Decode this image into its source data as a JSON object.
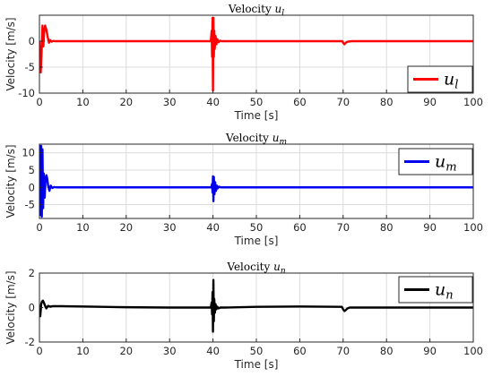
{
  "chart_data": [
    {
      "type": "line",
      "title": "Velocity",
      "title_sub": "l",
      "xlabel": "Time [s]",
      "ylabel": "Velocity [m/s]",
      "xlim": [
        0,
        100
      ],
      "ylim": [
        -10,
        5
      ],
      "xticks": [
        0,
        10,
        20,
        30,
        40,
        50,
        60,
        70,
        80,
        90,
        100
      ],
      "yticks": [
        -10,
        -5,
        0
      ],
      "grid": true,
      "legend_position": "bottom-right",
      "series": [
        {
          "name": "u_l",
          "legend_base": "u",
          "legend_sub": "l",
          "color": "#ff0000",
          "x": [
            0,
            0.3,
            0.5,
            0.7,
            0.9,
            1.1,
            1.3,
            1.6,
            1.9,
            2.2,
            2.5,
            2.8,
            3.2,
            3.6,
            5,
            10,
            20,
            30,
            39.5,
            39.7,
            39.8,
            39.9,
            40.0,
            40.1,
            40.2,
            40.3,
            40.4,
            40.6,
            40.8,
            41.0,
            41.3,
            41.6,
            42,
            43,
            50,
            60,
            69.8,
            70.0,
            70.3,
            70.6,
            71,
            72,
            80,
            90,
            100
          ],
          "y": [
            0,
            -6,
            -2,
            3,
            -1,
            1.8,
            3,
            2.2,
            0.8,
            -0.3,
            0.2,
            -0.1,
            0.05,
            0,
            0,
            0,
            0,
            0,
            0,
            2,
            -3,
            4.5,
            -9.5,
            4.5,
            -3,
            2,
            -1.5,
            1,
            -0.6,
            0.4,
            -0.2,
            0.1,
            0,
            0,
            0,
            0,
            0,
            -0.3,
            -0.6,
            -0.3,
            -0.1,
            0,
            0,
            0,
            0
          ]
        }
      ]
    },
    {
      "type": "line",
      "title": "Velocity",
      "title_sub": "m",
      "xlabel": "Time [s]",
      "ylabel": "Velocity [m/s]",
      "xlim": [
        0,
        100
      ],
      "ylim": [
        -9,
        12.5
      ],
      "xticks": [
        0,
        10,
        20,
        30,
        40,
        50,
        60,
        70,
        80,
        90,
        100
      ],
      "yticks": [
        -5,
        0,
        5,
        10
      ],
      "grid": true,
      "legend_position": "top-right",
      "series": [
        {
          "name": "u_m",
          "legend_base": "u",
          "legend_sub": "m",
          "color": "#0000ee",
          "x": [
            0,
            0.1,
            0.25,
            0.4,
            0.55,
            0.7,
            0.85,
            1.0,
            1.2,
            1.4,
            1.6,
            1.8,
            2.0,
            2.3,
            2.6,
            3.0,
            3.4,
            3.8,
            5,
            10,
            20,
            30,
            39.6,
            39.8,
            39.9,
            40.0,
            40.1,
            40.2,
            40.35,
            40.5,
            40.7,
            40.9,
            41.1,
            41.4,
            41.8,
            42.5,
            50,
            60,
            70,
            80,
            90,
            100
          ],
          "y": [
            0,
            12,
            -8,
            12,
            -8.5,
            11,
            -6,
            4,
            -3,
            2,
            3.5,
            2.5,
            0.5,
            -1,
            0.5,
            -0.2,
            0.1,
            0,
            0,
            0,
            0,
            0,
            0,
            1,
            -1.5,
            3.2,
            -4,
            3,
            -2,
            1.5,
            -1,
            0.5,
            -0.3,
            0.2,
            0,
            0,
            0,
            0,
            0,
            0,
            0,
            0
          ]
        }
      ]
    },
    {
      "type": "line",
      "title": "Velocity",
      "title_sub": "n",
      "xlabel": "Time [s]",
      "ylabel": "Velocity [m/s]",
      "xlim": [
        0,
        100
      ],
      "ylim": [
        -2,
        2
      ],
      "xticks": [
        0,
        10,
        20,
        30,
        40,
        50,
        60,
        70,
        80,
        90,
        100
      ],
      "yticks": [
        -2,
        0,
        2
      ],
      "grid": true,
      "legend_position": "top-right",
      "series": [
        {
          "name": "u_n",
          "legend_base": "u",
          "legend_sub": "n",
          "color": "#000000",
          "x": [
            0,
            0.2,
            0.4,
            0.6,
            0.8,
            1.0,
            1.3,
            1.6,
            2.0,
            2.5,
            3,
            5,
            10,
            20,
            30,
            39.5,
            39.7,
            39.8,
            39.9,
            40.0,
            40.1,
            40.2,
            40.3,
            40.45,
            40.6,
            40.8,
            41.0,
            41.3,
            41.7,
            42.5,
            50,
            60,
            69.7,
            70.0,
            70.3,
            70.6,
            71,
            71.5,
            72.5,
            80,
            90,
            100
          ],
          "y": [
            0,
            -0.5,
            0.2,
            0.35,
            0.4,
            0.3,
            0.1,
            -0.05,
            0.1,
            0.05,
            0.08,
            0.08,
            0.06,
            0.02,
            0,
            0,
            0.3,
            -0.4,
            0.9,
            -1.4,
            1.6,
            -0.8,
            0.5,
            -0.3,
            0.2,
            -0.1,
            0.05,
            -0.05,
            0,
            0,
            0.04,
            0.06,
            0.04,
            -0.1,
            -0.2,
            -0.15,
            -0.05,
            0,
            0,
            0,
            0,
            0
          ]
        }
      ]
    }
  ]
}
